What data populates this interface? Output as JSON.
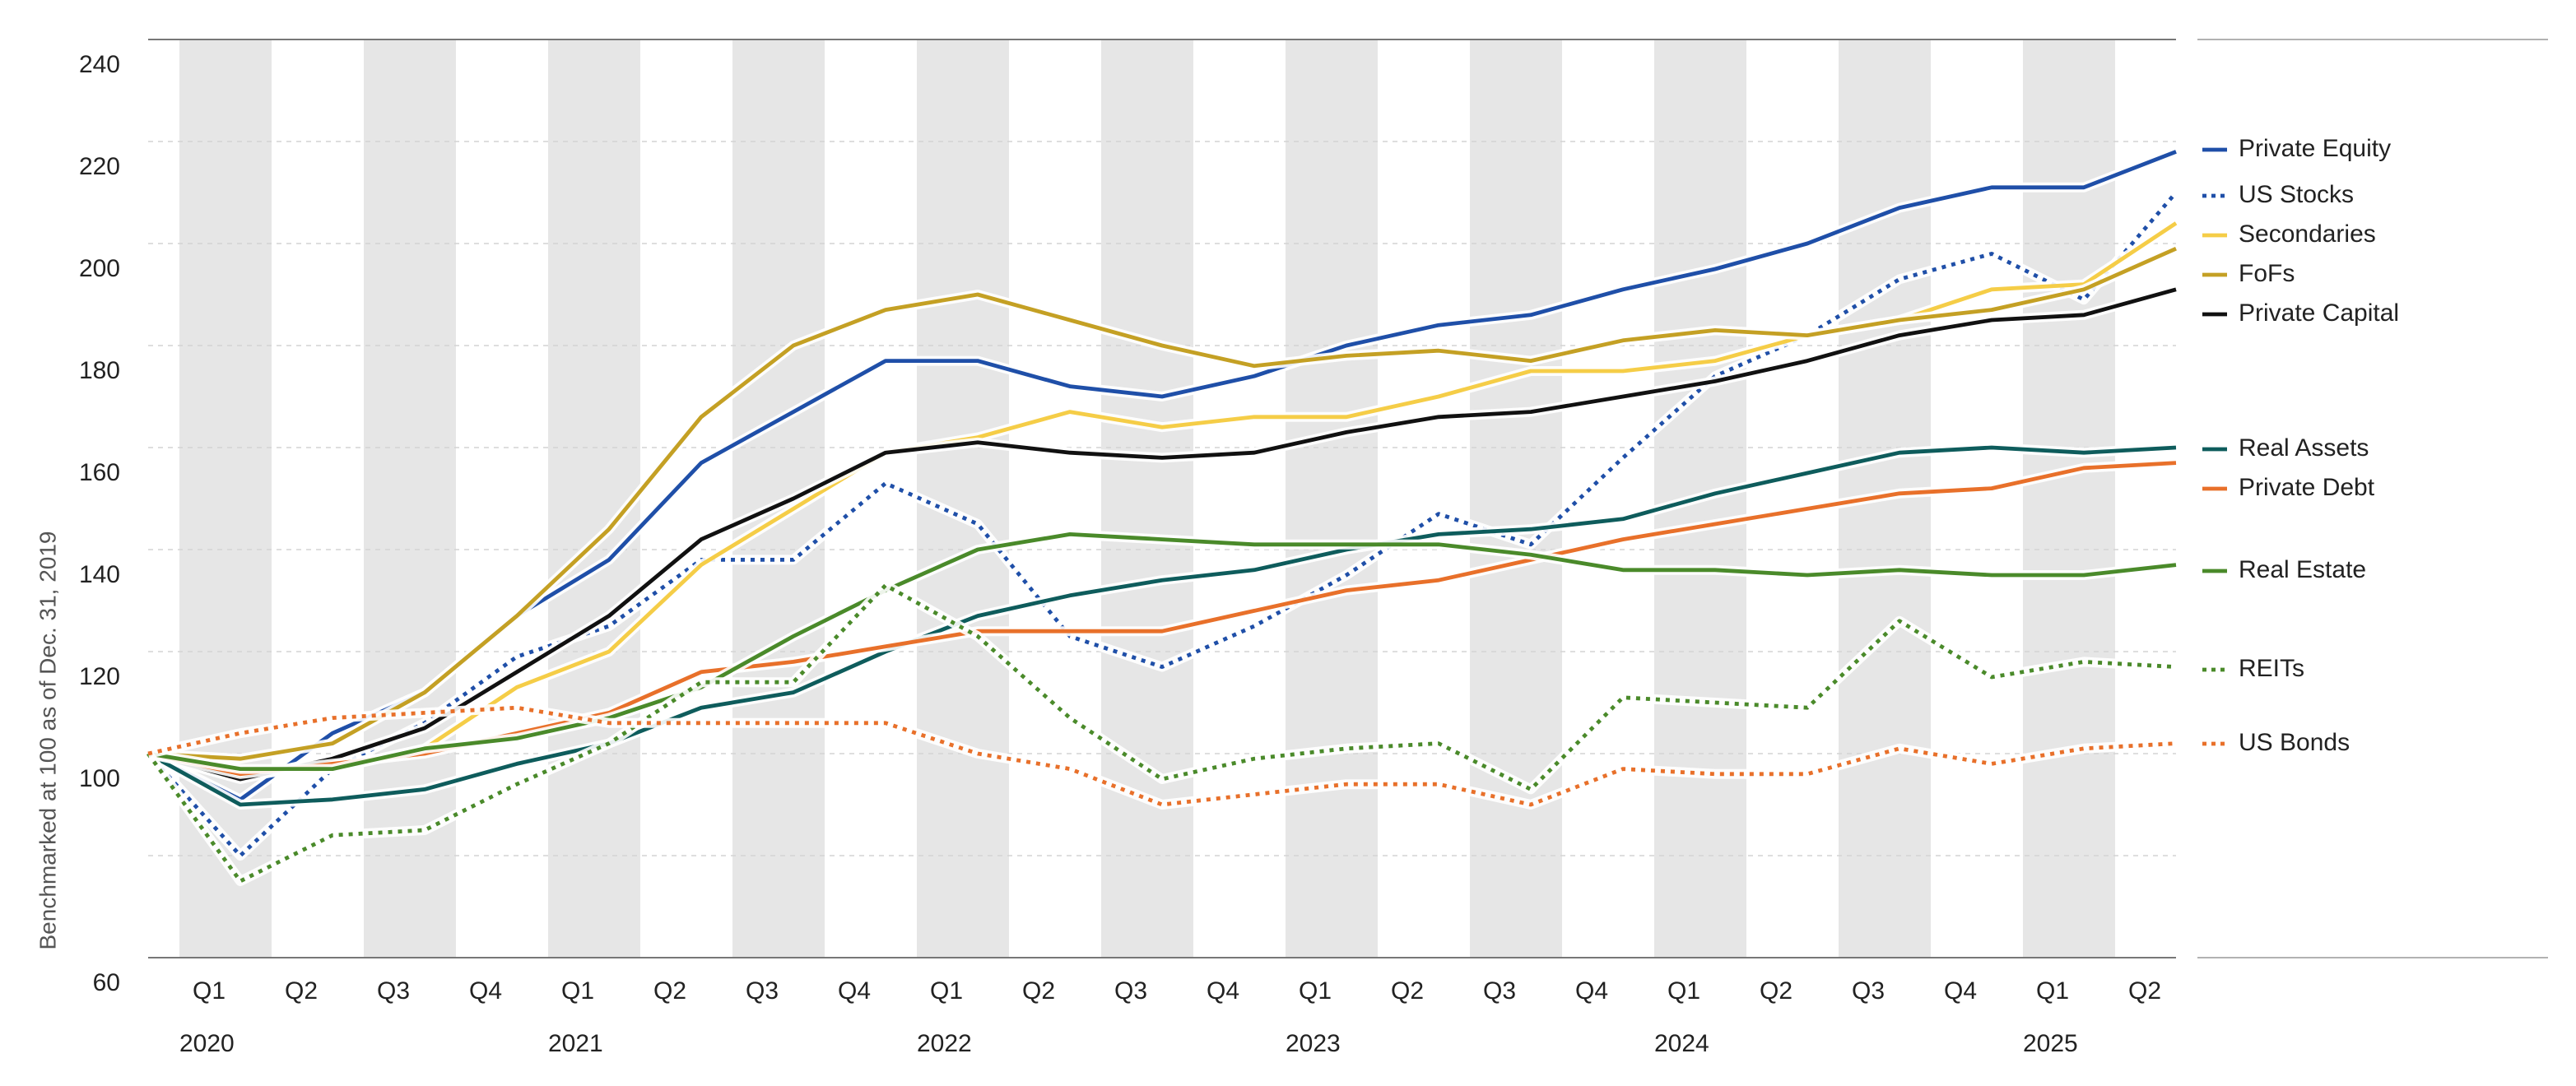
{
  "chart_data": {
    "type": "line",
    "y_axis_label": "Benchmarked at 100 as of Dec. 31, 2019",
    "categories": [
      null,
      "Q1",
      "Q2",
      "Q3",
      "Q4",
      "Q1",
      "Q2",
      "Q3",
      "Q4",
      "Q1",
      "Q2",
      "Q3",
      "Q4",
      "Q1",
      "Q2",
      "Q3",
      "Q4",
      "Q1",
      "Q2",
      "Q3",
      "Q4",
      "Q1",
      "Q2"
    ],
    "years": [
      "2020",
      "2021",
      "2022",
      "2023",
      "2024",
      "2025"
    ],
    "ylim": [
      60,
      240
    ],
    "yticks": [
      60,
      {
        "value": 80,
        "label": null
      },
      100,
      120,
      140,
      160,
      180,
      200,
      220,
      240
    ],
    "grid": true,
    "series": [
      {
        "name": "Private Equity",
        "color": "#1f4fa8",
        "style": "solid",
        "values": [
          100,
          91,
          104,
          112,
          127,
          138,
          157,
          167,
          177,
          177,
          172,
          170,
          174,
          180,
          184,
          186,
          191,
          195,
          200,
          207,
          211,
          211,
          218
        ]
      },
      {
        "name": "US Stocks",
        "color": "#1f4fa8",
        "style": "dotted",
        "values": [
          100,
          80,
          97,
          106,
          119,
          125,
          138,
          138,
          153,
          145,
          123,
          117,
          125,
          135,
          147,
          141,
          158,
          174,
          182,
          193,
          198,
          189,
          210
        ]
      },
      {
        "name": "Secondaries",
        "color": "#f5cd47",
        "style": "solid",
        "values": [
          100,
          96,
          97,
          101,
          113,
          120,
          137,
          148,
          159,
          162,
          167,
          164,
          166,
          166,
          170,
          175,
          175,
          177,
          182,
          185,
          191,
          192,
          204
        ]
      },
      {
        "name": "FoFs",
        "color": "#c4a024",
        "style": "solid",
        "values": [
          100,
          99,
          102,
          112,
          127,
          144,
          166,
          180,
          187,
          190,
          185,
          180,
          176,
          178,
          179,
          177,
          181,
          183,
          182,
          185,
          187,
          191,
          199
        ]
      },
      {
        "name": "Private Capital",
        "color": "#111111",
        "style": "solid",
        "values": [
          100,
          95,
          99,
          105,
          116,
          127,
          142,
          150,
          159,
          161,
          159,
          158,
          159,
          163,
          166,
          167,
          170,
          173,
          177,
          182,
          185,
          186,
          191
        ]
      },
      {
        "name": "Real Assets",
        "color": "#0e5c5c",
        "style": "solid",
        "values": [
          100,
          90,
          91,
          93,
          98,
          102,
          109,
          112,
          120,
          127,
          131,
          134,
          136,
          140,
          143,
          144,
          146,
          151,
          155,
          159,
          160,
          159,
          160
        ]
      },
      {
        "name": "Private Debt",
        "color": "#e8702a",
        "style": "solid",
        "values": [
          100,
          96,
          98,
          100,
          104,
          108,
          116,
          118,
          121,
          124,
          124,
          124,
          128,
          132,
          134,
          138,
          142,
          145,
          148,
          151,
          152,
          156,
          157
        ]
      },
      {
        "name": "Real Estate",
        "color": "#4a8a2a",
        "style": "solid",
        "values": [
          100,
          97,
          97,
          101,
          103,
          107,
          113,
          123,
          132,
          140,
          143,
          142,
          141,
          141,
          141,
          139,
          136,
          136,
          135,
          136,
          135,
          135,
          137
        ]
      },
      {
        "name": "REITs",
        "color": "#4a8a2a",
        "style": "dotted",
        "values": [
          100,
          75,
          84,
          85,
          94,
          102,
          114,
          114,
          133,
          123,
          107,
          95,
          99,
          101,
          102,
          93,
          111,
          110,
          109,
          126,
          115,
          118,
          117
        ]
      },
      {
        "name": "US Bonds",
        "color": "#e8702a",
        "style": "dotted",
        "values": [
          100,
          104,
          107,
          108,
          109,
          106,
          106,
          106,
          106,
          100,
          97,
          90,
          92,
          94,
          94,
          90,
          97,
          96,
          96,
          101,
          98,
          101,
          102
        ]
      }
    ]
  }
}
